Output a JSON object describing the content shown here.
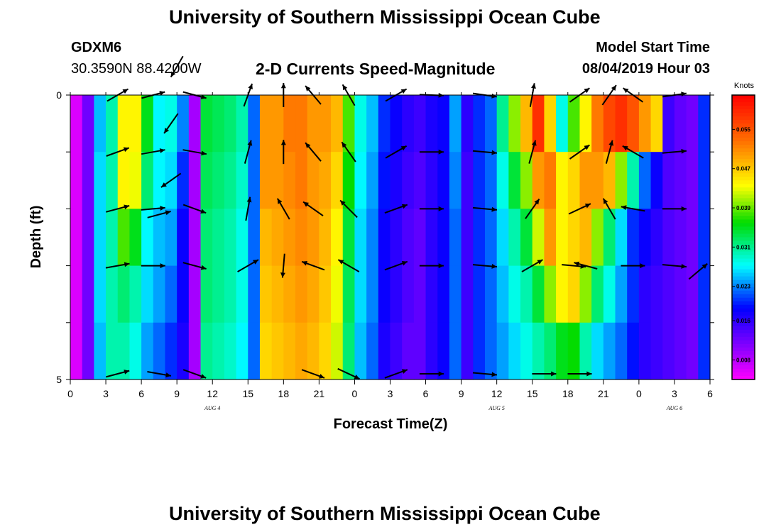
{
  "header": {
    "title": "University of Southern Mississippi Ocean Cube",
    "station": "GDXM6",
    "coords": "30.3590N 88.4200W",
    "subtitle": "2-D Currents Speed-Magnitude",
    "start_label": "Model Start Time",
    "start_value": "08/04/2019 Hour 03"
  },
  "footer": {
    "title": "University of Southern Mississippi Ocean Cube"
  },
  "colorbar": {
    "unit": "Knots",
    "ticks": [
      "0.055",
      "0.047",
      "0.039",
      "0.031",
      "0.023",
      "0.016",
      "0.008"
    ],
    "min": 0.004,
    "max": 0.062
  },
  "chart_data": {
    "type": "heatmap",
    "title": "2-D Currents Speed-Magnitude",
    "xlabel": "Forecast Time(Z)",
    "ylabel": "Depth (ft)",
    "x_ticks": [
      "0",
      "3",
      "6",
      "9",
      "12",
      "15",
      "18",
      "21",
      "0",
      "3",
      "6",
      "9",
      "12",
      "15",
      "18",
      "21",
      "0",
      "3",
      "6"
    ],
    "x_range_hours": [
      0,
      54
    ],
    "y_ticks": [
      "0",
      "5"
    ],
    "ylim": [
      0,
      5
    ],
    "date_labels": [
      {
        "text": "AUG 4",
        "hour": 12
      },
      {
        "text": "AUG 5",
        "hour": 36
      },
      {
        "text": "AUG 6",
        "hour": 51
      }
    ],
    "depth_rows": 5,
    "columns_per_row": 54,
    "speed_knots": [
      [
        0.006,
        0.012,
        0.025,
        0.03,
        0.044,
        0.044,
        0.035,
        0.027,
        0.028,
        0.023,
        0.009,
        0.034,
        0.033,
        0.032,
        0.03,
        0.022,
        0.05,
        0.05,
        0.052,
        0.052,
        0.05,
        0.05,
        0.048,
        0.038,
        0.028,
        0.025,
        0.02,
        0.018,
        0.016,
        0.015,
        0.017,
        0.018,
        0.024,
        0.016,
        0.02,
        0.022,
        0.031,
        0.04,
        0.048,
        0.058,
        0.046,
        0.028,
        0.038,
        0.044,
        0.052,
        0.056,
        0.058,
        0.055,
        0.05,
        0.046,
        0.015,
        0.013,
        0.012,
        0.02
      ],
      [
        0.006,
        0.012,
        0.026,
        0.03,
        0.044,
        0.043,
        0.032,
        0.027,
        0.026,
        0.02,
        0.009,
        0.033,
        0.032,
        0.031,
        0.029,
        0.022,
        0.05,
        0.05,
        0.051,
        0.052,
        0.05,
        0.049,
        0.046,
        0.036,
        0.027,
        0.024,
        0.019,
        0.017,
        0.015,
        0.014,
        0.016,
        0.018,
        0.023,
        0.015,
        0.02,
        0.022,
        0.028,
        0.034,
        0.04,
        0.05,
        0.052,
        0.044,
        0.046,
        0.05,
        0.05,
        0.048,
        0.04,
        0.03,
        0.022,
        0.018,
        0.014,
        0.013,
        0.012,
        0.02
      ],
      [
        0.006,
        0.012,
        0.026,
        0.03,
        0.038,
        0.035,
        0.027,
        0.025,
        0.024,
        0.018,
        0.009,
        0.032,
        0.031,
        0.03,
        0.028,
        0.022,
        0.048,
        0.049,
        0.05,
        0.051,
        0.05,
        0.048,
        0.044,
        0.034,
        0.026,
        0.023,
        0.018,
        0.016,
        0.014,
        0.013,
        0.016,
        0.018,
        0.022,
        0.015,
        0.02,
        0.022,
        0.026,
        0.03,
        0.034,
        0.042,
        0.05,
        0.044,
        0.046,
        0.048,
        0.04,
        0.032,
        0.026,
        0.02,
        0.018,
        0.016,
        0.014,
        0.013,
        0.012,
        0.02
      ],
      [
        0.006,
        0.012,
        0.026,
        0.03,
        0.032,
        0.03,
        0.026,
        0.024,
        0.022,
        0.018,
        0.009,
        0.032,
        0.031,
        0.03,
        0.028,
        0.022,
        0.047,
        0.048,
        0.049,
        0.05,
        0.049,
        0.047,
        0.043,
        0.033,
        0.026,
        0.023,
        0.018,
        0.016,
        0.014,
        0.013,
        0.016,
        0.018,
        0.022,
        0.015,
        0.02,
        0.022,
        0.025,
        0.028,
        0.03,
        0.034,
        0.04,
        0.044,
        0.046,
        0.04,
        0.032,
        0.028,
        0.024,
        0.02,
        0.016,
        0.015,
        0.014,
        0.013,
        0.012,
        0.02
      ],
      [
        0.006,
        0.012,
        0.025,
        0.03,
        0.03,
        0.028,
        0.024,
        0.022,
        0.02,
        0.017,
        0.009,
        0.031,
        0.03,
        0.029,
        0.027,
        0.022,
        0.046,
        0.047,
        0.048,
        0.049,
        0.048,
        0.046,
        0.042,
        0.032,
        0.025,
        0.022,
        0.017,
        0.015,
        0.013,
        0.013,
        0.016,
        0.018,
        0.022,
        0.015,
        0.02,
        0.022,
        0.024,
        0.026,
        0.028,
        0.03,
        0.032,
        0.035,
        0.036,
        0.03,
        0.026,
        0.024,
        0.022,
        0.019,
        0.016,
        0.015,
        0.014,
        0.013,
        0.012,
        0.02
      ]
    ],
    "vectors": [
      {
        "hour": 4,
        "depth": 0,
        "dir": -30,
        "len": 34
      },
      {
        "hour": 7,
        "depth": 0,
        "dir": -15,
        "len": 34
      },
      {
        "hour": 10.5,
        "depth": 0,
        "dir": 15,
        "len": 34
      },
      {
        "hour": 15,
        "depth": 0,
        "dir": -70,
        "len": 34
      },
      {
        "hour": 18,
        "depth": 0,
        "dir": -90,
        "len": 34
      },
      {
        "hour": 20.5,
        "depth": 0,
        "dir": -130,
        "len": 34
      },
      {
        "hour": 23.5,
        "depth": 0,
        "dir": -120,
        "len": 34
      },
      {
        "hour": 27.5,
        "depth": 0,
        "dir": -30,
        "len": 34
      },
      {
        "hour": 30.5,
        "depth": 0,
        "dir": 2,
        "len": 34
      },
      {
        "hour": 35,
        "depth": 0,
        "dir": 8,
        "len": 34
      },
      {
        "hour": 39,
        "depth": 0,
        "dir": -80,
        "len": 34
      },
      {
        "hour": 43,
        "depth": 0,
        "dir": -35,
        "len": 34
      },
      {
        "hour": 45.5,
        "depth": 0,
        "dir": -55,
        "len": 34
      },
      {
        "hour": 47.5,
        "depth": 0,
        "dir": -145,
        "len": 34
      },
      {
        "hour": 51,
        "depth": 0,
        "dir": -8,
        "len": 34
      },
      {
        "hour": 8.5,
        "depth": 0.5,
        "dir": 125,
        "len": 34
      },
      {
        "hour": 8.5,
        "depth": 1.5,
        "dir": 145,
        "len": 34
      },
      {
        "hour": 9,
        "depth": -0.5,
        "dir": 120,
        "len": 34
      },
      {
        "hour": 4,
        "depth": 1,
        "dir": -20,
        "len": 34
      },
      {
        "hour": 7,
        "depth": 1,
        "dir": -10,
        "len": 34
      },
      {
        "hour": 10.5,
        "depth": 1,
        "dir": 10,
        "len": 34
      },
      {
        "hour": 15,
        "depth": 1,
        "dir": -75,
        "len": 34
      },
      {
        "hour": 18,
        "depth": 1,
        "dir": -90,
        "len": 34
      },
      {
        "hour": 20.5,
        "depth": 1,
        "dir": -130,
        "len": 34
      },
      {
        "hour": 23.5,
        "depth": 1,
        "dir": -125,
        "len": 34
      },
      {
        "hour": 27.5,
        "depth": 1,
        "dir": -30,
        "len": 34
      },
      {
        "hour": 30.5,
        "depth": 1,
        "dir": 0,
        "len": 34
      },
      {
        "hour": 35,
        "depth": 1,
        "dir": 5,
        "len": 34
      },
      {
        "hour": 39,
        "depth": 1,
        "dir": -75,
        "len": 34
      },
      {
        "hour": 43,
        "depth": 1,
        "dir": -35,
        "len": 34
      },
      {
        "hour": 45.5,
        "depth": 1,
        "dir": -75,
        "len": 34
      },
      {
        "hour": 47.5,
        "depth": 1,
        "dir": -150,
        "len": 34
      },
      {
        "hour": 51,
        "depth": 1,
        "dir": -5,
        "len": 34
      },
      {
        "hour": 4,
        "depth": 2,
        "dir": -15,
        "len": 34
      },
      {
        "hour": 7,
        "depth": 2,
        "dir": -5,
        "len": 34
      },
      {
        "hour": 7.5,
        "depth": 2.1,
        "dir": -15,
        "len": 34
      },
      {
        "hour": 10.5,
        "depth": 2,
        "dir": 20,
        "len": 34
      },
      {
        "hour": 15,
        "depth": 2,
        "dir": -80,
        "len": 34
      },
      {
        "hour": 18,
        "depth": 2,
        "dir": -120,
        "len": 34
      },
      {
        "hour": 20.5,
        "depth": 2,
        "dir": -145,
        "len": 34
      },
      {
        "hour": 23.5,
        "depth": 2,
        "dir": -135,
        "len": 34
      },
      {
        "hour": 27.5,
        "depth": 2,
        "dir": -20,
        "len": 34
      },
      {
        "hour": 30.5,
        "depth": 2,
        "dir": 0,
        "len": 34
      },
      {
        "hour": 35,
        "depth": 2,
        "dir": 5,
        "len": 34
      },
      {
        "hour": 39,
        "depth": 2,
        "dir": -55,
        "len": 34
      },
      {
        "hour": 43,
        "depth": 2,
        "dir": -25,
        "len": 34
      },
      {
        "hour": 45.5,
        "depth": 2,
        "dir": -120,
        "len": 34
      },
      {
        "hour": 47.5,
        "depth": 2,
        "dir": -170,
        "len": 34
      },
      {
        "hour": 51,
        "depth": 2,
        "dir": 0,
        "len": 34
      },
      {
        "hour": 4,
        "depth": 3,
        "dir": -10,
        "len": 34
      },
      {
        "hour": 7,
        "depth": 3,
        "dir": 0,
        "len": 34
      },
      {
        "hour": 10.5,
        "depth": 3,
        "dir": 15,
        "len": 34
      },
      {
        "hour": 15,
        "depth": 3,
        "dir": -30,
        "len": 34
      },
      {
        "hour": 18,
        "depth": 3,
        "dir": 95,
        "len": 34
      },
      {
        "hour": 20.5,
        "depth": 3,
        "dir": -160,
        "len": 34
      },
      {
        "hour": 23.5,
        "depth": 3,
        "dir": -150,
        "len": 34
      },
      {
        "hour": 27.5,
        "depth": 3,
        "dir": -20,
        "len": 34
      },
      {
        "hour": 30.5,
        "depth": 3,
        "dir": 0,
        "len": 34
      },
      {
        "hour": 35,
        "depth": 3,
        "dir": 5,
        "len": 34
      },
      {
        "hour": 39,
        "depth": 3,
        "dir": -30,
        "len": 34
      },
      {
        "hour": 42.5,
        "depth": 3,
        "dir": 5,
        "len": 34
      },
      {
        "hour": 43.5,
        "depth": 3,
        "dir": -165,
        "len": 34
      },
      {
        "hour": 47.5,
        "depth": 3,
        "dir": 0,
        "len": 34
      },
      {
        "hour": 51,
        "depth": 3,
        "dir": 5,
        "len": 34
      },
      {
        "hour": 53,
        "depth": 3.1,
        "dir": -40,
        "len": 34
      },
      {
        "hour": 4,
        "depth": 4.9,
        "dir": -15,
        "len": 34
      },
      {
        "hour": 7.5,
        "depth": 4.9,
        "dir": 10,
        "len": 34
      },
      {
        "hour": 10.5,
        "depth": 4.9,
        "dir": 20,
        "len": 34
      },
      {
        "hour": 20.5,
        "depth": 4.9,
        "dir": 20,
        "len": 34
      },
      {
        "hour": 23.5,
        "depth": 4.9,
        "dir": 25,
        "len": 34
      },
      {
        "hour": 27.5,
        "depth": 4.9,
        "dir": -20,
        "len": 34
      },
      {
        "hour": 30.5,
        "depth": 4.9,
        "dir": 0,
        "len": 34
      },
      {
        "hour": 35,
        "depth": 4.9,
        "dir": 5,
        "len": 34
      },
      {
        "hour": 40,
        "depth": 4.9,
        "dir": 0,
        "len": 34
      },
      {
        "hour": 43,
        "depth": 4.9,
        "dir": 0,
        "len": 34
      }
    ]
  }
}
